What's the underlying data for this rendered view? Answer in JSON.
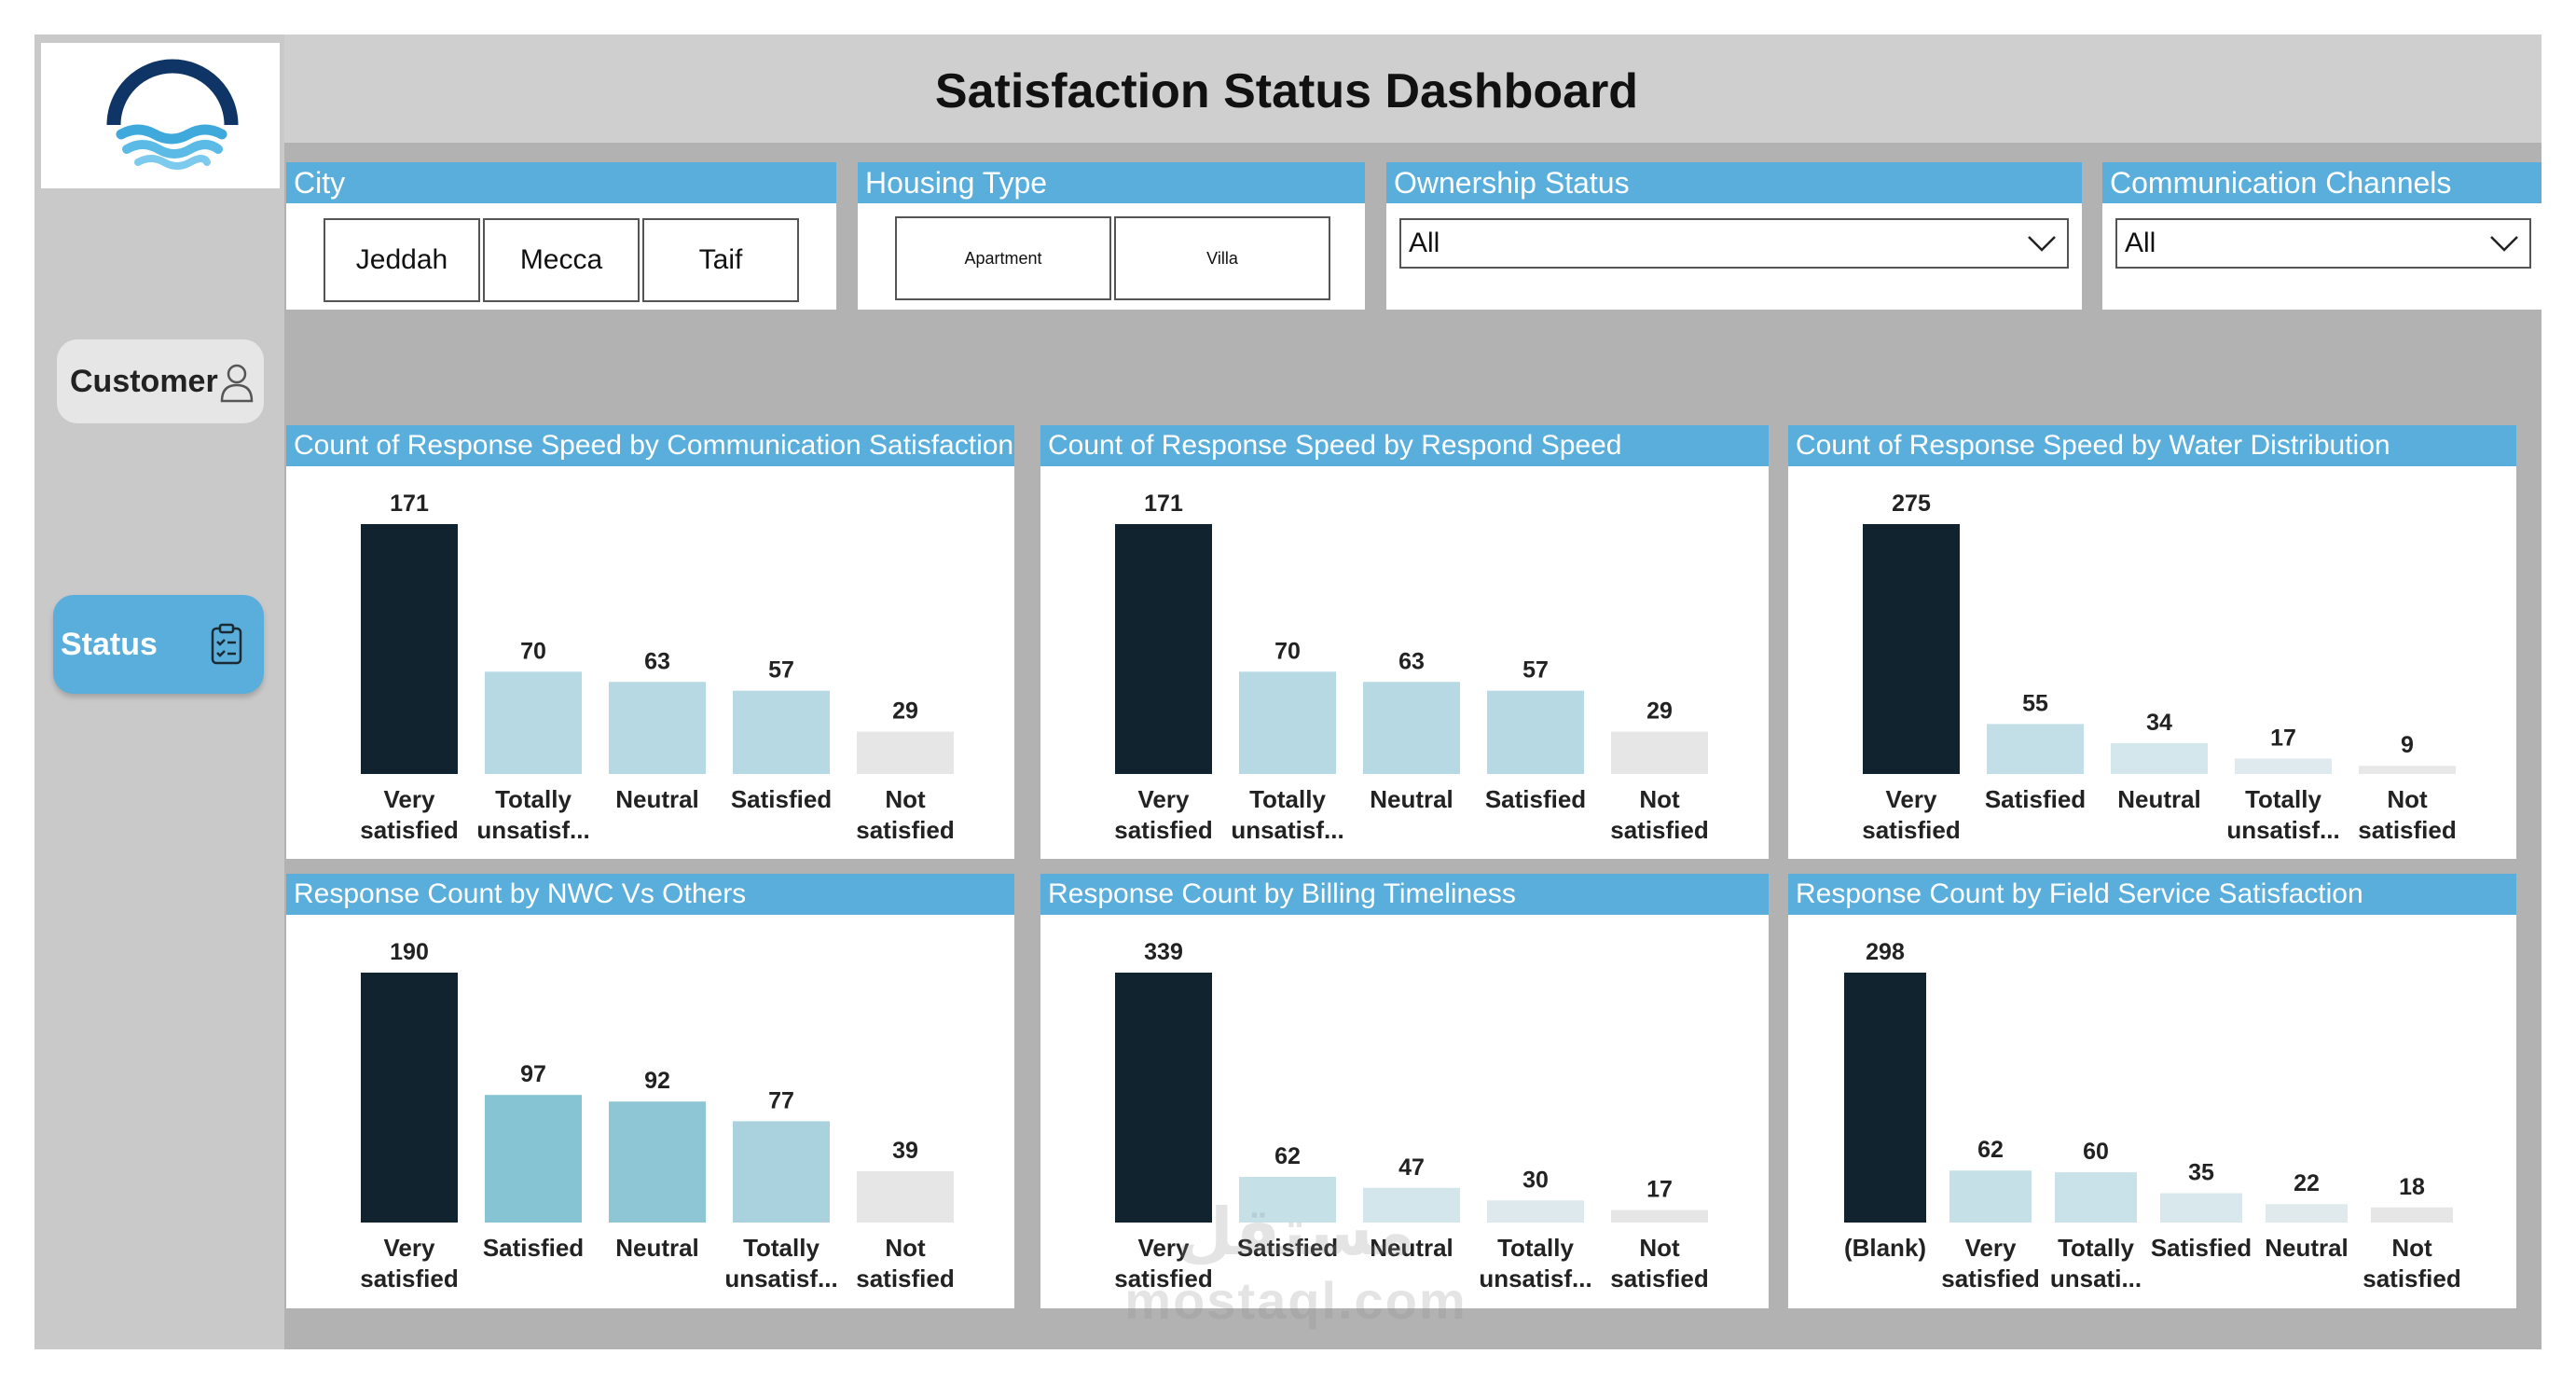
{
  "header": {
    "title": "Satisfaction Status Dashboard"
  },
  "nav": {
    "customer_label": "Customer",
    "status_label": "Status"
  },
  "slicers": {
    "city": {
      "title": "City",
      "options": [
        "Jeddah",
        "Mecca",
        "Taif"
      ]
    },
    "housing": {
      "title": "Housing Type",
      "options": [
        "Apartment",
        "Villa"
      ]
    },
    "ownership": {
      "title": "Ownership Status",
      "value": "All"
    },
    "channels": {
      "title": "Communication Channels",
      "value": "All"
    }
  },
  "colors": {
    "header_blue": "#5aaedb",
    "dark_bar": "#10232f",
    "light_bar": "#b7d9e3",
    "mid_bar": "#86c4d4",
    "grey_bar": "#e6e6e6"
  },
  "chart_data": [
    {
      "id": "comm",
      "type": "bar",
      "title": "Count of Response Speed by Communication Satisfaction",
      "categories": [
        [
          "Very",
          "satisfied"
        ],
        [
          "Totally",
          "unsatisf..."
        ],
        [
          "Neutral"
        ],
        [
          "Satisfied"
        ],
        [
          "Not",
          "satisfied"
        ]
      ],
      "values": [
        171,
        70,
        63,
        57,
        29
      ],
      "colors": [
        "#10232f",
        "#b7d9e3",
        "#b7d9e3",
        "#b7d9e3",
        "#e6e6e6"
      ],
      "ylim": [
        0,
        171
      ]
    },
    {
      "id": "speed",
      "type": "bar",
      "title": "Count of Response Speed by Respond Speed",
      "categories": [
        [
          "Very",
          "satisfied"
        ],
        [
          "Totally",
          "unsatisf..."
        ],
        [
          "Neutral"
        ],
        [
          "Satisfied"
        ],
        [
          "Not",
          "satisfied"
        ]
      ],
      "values": [
        171,
        70,
        63,
        57,
        29
      ],
      "colors": [
        "#10232f",
        "#b7d9e3",
        "#b7d9e3",
        "#b7d9e3",
        "#e6e6e6"
      ],
      "ylim": [
        0,
        171
      ]
    },
    {
      "id": "water",
      "type": "bar",
      "title": "Count of Response Speed by Water Distribution",
      "categories": [
        [
          "Very",
          "satisfied"
        ],
        [
          "Satisfied"
        ],
        [
          "Neutral"
        ],
        [
          "Totally",
          "unsatisf..."
        ],
        [
          "Not",
          "satisfied"
        ]
      ],
      "values": [
        275,
        55,
        34,
        17,
        9
      ],
      "colors": [
        "#10232f",
        "#c2dfe7",
        "#d4e7ed",
        "#dfeaee",
        "#e8e8e8"
      ],
      "ylim": [
        0,
        275
      ]
    },
    {
      "id": "nwc",
      "type": "bar",
      "title": "Response Count by NWC Vs Others",
      "categories": [
        [
          "Very",
          "satisfied"
        ],
        [
          "Satisfied"
        ],
        [
          "Neutral"
        ],
        [
          "Totally",
          "unsatisf..."
        ],
        [
          "Not",
          "satisfied"
        ]
      ],
      "values": [
        190,
        97,
        92,
        77,
        39
      ],
      "colors": [
        "#10232f",
        "#86c4d4",
        "#8fc6d6",
        "#a9d2de",
        "#e6e6e6"
      ],
      "ylim": [
        0,
        190
      ]
    },
    {
      "id": "billing",
      "type": "bar",
      "title": "Response Count by Billing Timeliness",
      "categories": [
        [
          "Very",
          "satisfied"
        ],
        [
          "Satisfied"
        ],
        [
          "Neutral"
        ],
        [
          "Totally",
          "unsatisf..."
        ],
        [
          "Not",
          "satisfied"
        ]
      ],
      "values": [
        339,
        62,
        47,
        30,
        17
      ],
      "colors": [
        "#10232f",
        "#c6e0e8",
        "#d2e6ec",
        "#dde9ed",
        "#e6e6e6"
      ],
      "ylim": [
        0,
        339
      ]
    },
    {
      "id": "field",
      "type": "bar",
      "title": "Response Count by Field Service Satisfaction",
      "categories": [
        [
          "(Blank)"
        ],
        [
          "Very",
          "satisfied"
        ],
        [
          "Totally",
          "unsati..."
        ],
        [
          "Satisfied"
        ],
        [
          "Neutral"
        ],
        [
          "Not",
          "satisfied"
        ]
      ],
      "values": [
        298,
        62,
        60,
        35,
        22,
        18
      ],
      "colors": [
        "#10232f",
        "#c6e0e8",
        "#c9e2e9",
        "#d8e8ed",
        "#e0eaed",
        "#e6e6e6"
      ],
      "ylim": [
        0,
        298
      ]
    }
  ],
  "watermark": {
    "arabic": "مستقل",
    "latin": "mostaql.com"
  }
}
